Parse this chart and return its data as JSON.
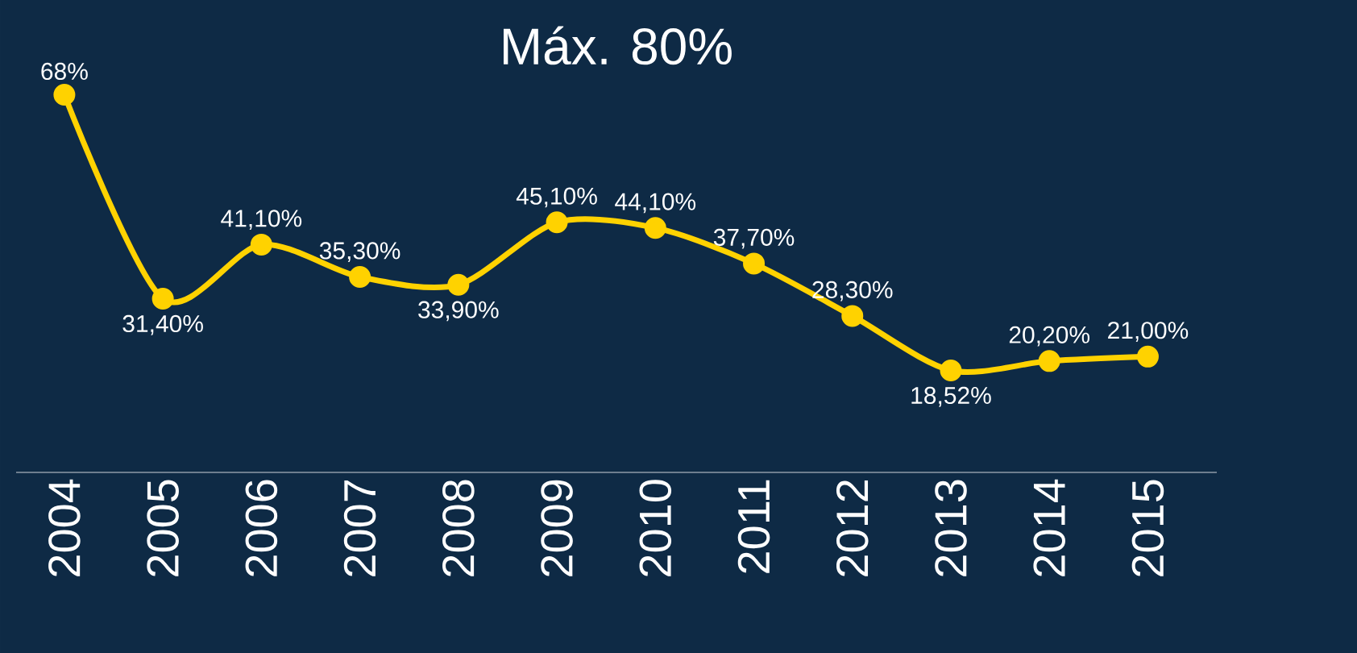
{
  "chart_data": {
    "type": "line",
    "title": "Máx. 80%",
    "categories": [
      "2004",
      "2005",
      "2006",
      "2007",
      "2008",
      "2009",
      "2010",
      "2011",
      "2012",
      "2013",
      "2014",
      "2015"
    ],
    "series": [
      {
        "color": "#ffd200",
        "values": [
          68,
          31.4,
          41.1,
          35.3,
          33.9,
          45.1,
          44.1,
          37.7,
          28.3,
          18.52,
          20.2,
          21.0
        ],
        "value_labels": [
          "68%",
          "31,40%",
          "41,10%",
          "35,30%",
          "33,90%",
          "45,10%",
          "44,10%",
          "37,70%",
          "28,30%",
          "18,52%",
          "20,20%",
          "21,00%"
        ]
      }
    ],
    "tick_labels": "x",
    "marker": "circle",
    "line_style": "solid"
  }
}
